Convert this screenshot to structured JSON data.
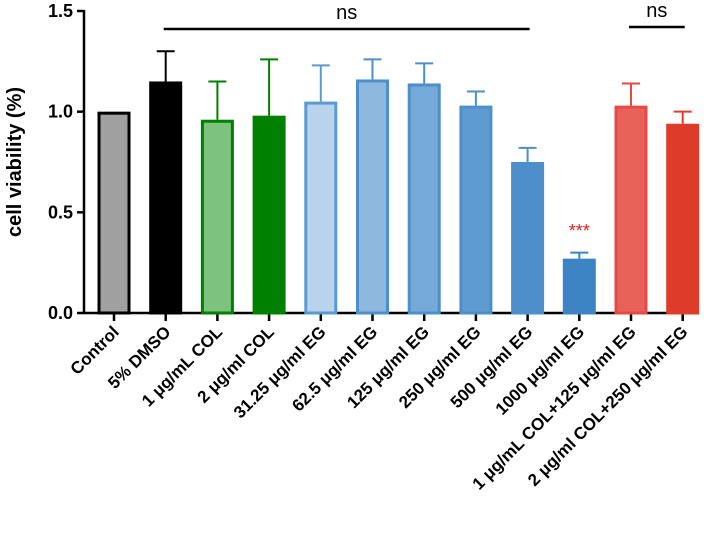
{
  "chart_data": {
    "type": "bar",
    "title": "",
    "xlabel": "",
    "ylabel": "cell viability (%)",
    "ylim": [
      0,
      1.5
    ],
    "yticks": [
      "0.0",
      "0.5",
      "1.0",
      "1.5"
    ],
    "categories": [
      "Control",
      "5% DMSO",
      "1 μg/mL COL",
      "2 μg/ml COL",
      "31.25 μg/ml EG",
      "62.5 μg/ml EG",
      "125 μg/ml EG",
      "250 μg/ml EG",
      "500 μg/ml EG",
      "1000 μg/ml EG",
      "1 μg/mL COL+125 μg/ml EG",
      "2 μg/ml COL+250 μg/ml EG"
    ],
    "values": [
      1.0,
      1.15,
      0.96,
      0.98,
      1.05,
      1.16,
      1.14,
      1.03,
      0.75,
      0.27,
      1.03,
      0.94
    ],
    "errors": [
      0.0,
      0.15,
      0.19,
      0.28,
      0.18,
      0.1,
      0.1,
      0.07,
      0.07,
      0.03,
      0.11,
      0.06
    ],
    "fill_colors": [
      "#a0a0a0",
      "#000000",
      "#7dc27d",
      "#008000",
      "#b8d3eb",
      "#8fb8de",
      "#74a9d8",
      "#5e9bd1",
      "#4d8fca",
      "#3d84c4",
      "#e8625a",
      "#dd3c2a"
    ],
    "edge_colors": [
      "#000000",
      "#000000",
      "#008000",
      "#008000",
      "#5a9ad2",
      "#4d8fca",
      "#4d8fca",
      "#4d8fca",
      "#4d8fca",
      "#3d84c4",
      "#e44b44",
      "#dd3c2a"
    ],
    "annotations": {
      "ns_left": "ns",
      "ns_right": "ns",
      "stars": "***",
      "stars_color": "#e02020"
    }
  }
}
